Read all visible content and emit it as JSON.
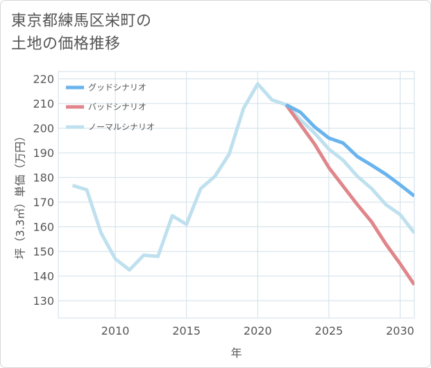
{
  "header": {
    "title_line1": "東京都練馬区栄町の",
    "title_line2": "土地の価格推移"
  },
  "chart_data": {
    "type": "line",
    "xlabel": "年",
    "ylabel": "坪（3.3㎡）単価（万円）",
    "xlim": [
      2006,
      2031
    ],
    "ylim": [
      123,
      223
    ],
    "xticks": [
      2010,
      2015,
      2020,
      2025,
      2030
    ],
    "yticks": [
      130,
      140,
      150,
      160,
      170,
      180,
      190,
      200,
      210,
      220
    ],
    "grid": true,
    "legend_position": "top-left",
    "series": [
      {
        "name": "グッドシナリオ",
        "color": "#6ab4ee",
        "x": [
          2022,
          2023,
          2024,
          2025,
          2026,
          2027,
          2028,
          2029,
          2030,
          2031
        ],
        "y": [
          209.5,
          206.5,
          200.5,
          196,
          194,
          188.5,
          185,
          181.3,
          177,
          172.5
        ]
      },
      {
        "name": "バッドシナリオ",
        "color": "#e0868b",
        "x": [
          2022,
          2023,
          2024,
          2025,
          2026,
          2027,
          2028,
          2029,
          2030,
          2031
        ],
        "y": [
          209.5,
          201.5,
          193.5,
          184,
          176.5,
          169,
          162,
          153,
          145,
          136.5
        ]
      },
      {
        "name": "ノーマルシナリオ",
        "color": "#bfe0ee",
        "x": [
          2007,
          2008,
          2009,
          2010,
          2011,
          2012,
          2013,
          2014,
          2015,
          2016,
          2017,
          2018,
          2019,
          2020,
          2021,
          2022,
          2023,
          2024,
          2025,
          2026,
          2027,
          2028,
          2029,
          2030,
          2031
        ],
        "y": [
          176.8,
          175,
          157.5,
          147,
          142.5,
          148.5,
          148,
          164.5,
          161,
          175.5,
          180.5,
          189.5,
          208,
          218,
          211.5,
          209.5,
          203.5,
          198,
          191.5,
          187,
          180.5,
          175.5,
          169,
          165,
          157.5
        ]
      }
    ]
  }
}
